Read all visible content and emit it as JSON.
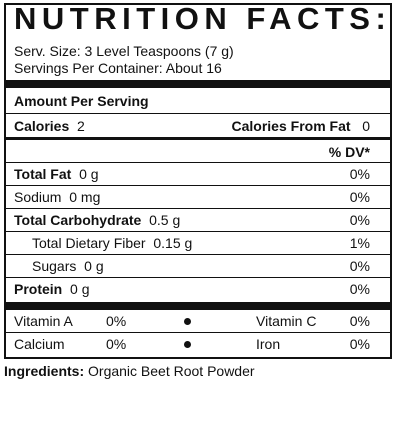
{
  "header": {
    "title": "NUTRITION FACTS:",
    "serving_size": "Serv. Size: 3 Level Teaspoons (7 g)",
    "servings_per_container": "Servings Per Container: About 16"
  },
  "amount_per_serving": "Amount Per Serving",
  "calories": {
    "label": "Calories",
    "value": "2"
  },
  "calories_from_fat": {
    "label": "Calories From Fat",
    "value": "0"
  },
  "dv_header": "% DV*",
  "nutrients": {
    "total_fat": {
      "label": "Total Fat",
      "amount": "0 g",
      "dv": "0%"
    },
    "sodium": {
      "label": "Sodium",
      "amount": "0 mg",
      "dv": "0%"
    },
    "total_carbohydrate": {
      "label": "Total Carbohydrate",
      "amount": "0.5 g",
      "dv": "0%"
    },
    "dietary_fiber": {
      "label": "Total Dietary Fiber",
      "amount": "0.15 g",
      "dv": "1%"
    },
    "sugars": {
      "label": "Sugars",
      "amount": "0 g",
      "dv": "0%"
    },
    "protein": {
      "label": "Protein",
      "amount": "0 g",
      "dv": "0%"
    }
  },
  "vitamins": {
    "vitamin_a": {
      "label": "Vitamin A",
      "dv": "0%"
    },
    "vitamin_c": {
      "label": "Vitamin C",
      "dv": "0%"
    },
    "calcium": {
      "label": "Calcium",
      "dv": "0%"
    },
    "iron": {
      "label": "Iron",
      "dv": "0%"
    }
  },
  "ingredients": {
    "label": "Ingredients:",
    "text": "Organic Beet Root Powder"
  }
}
